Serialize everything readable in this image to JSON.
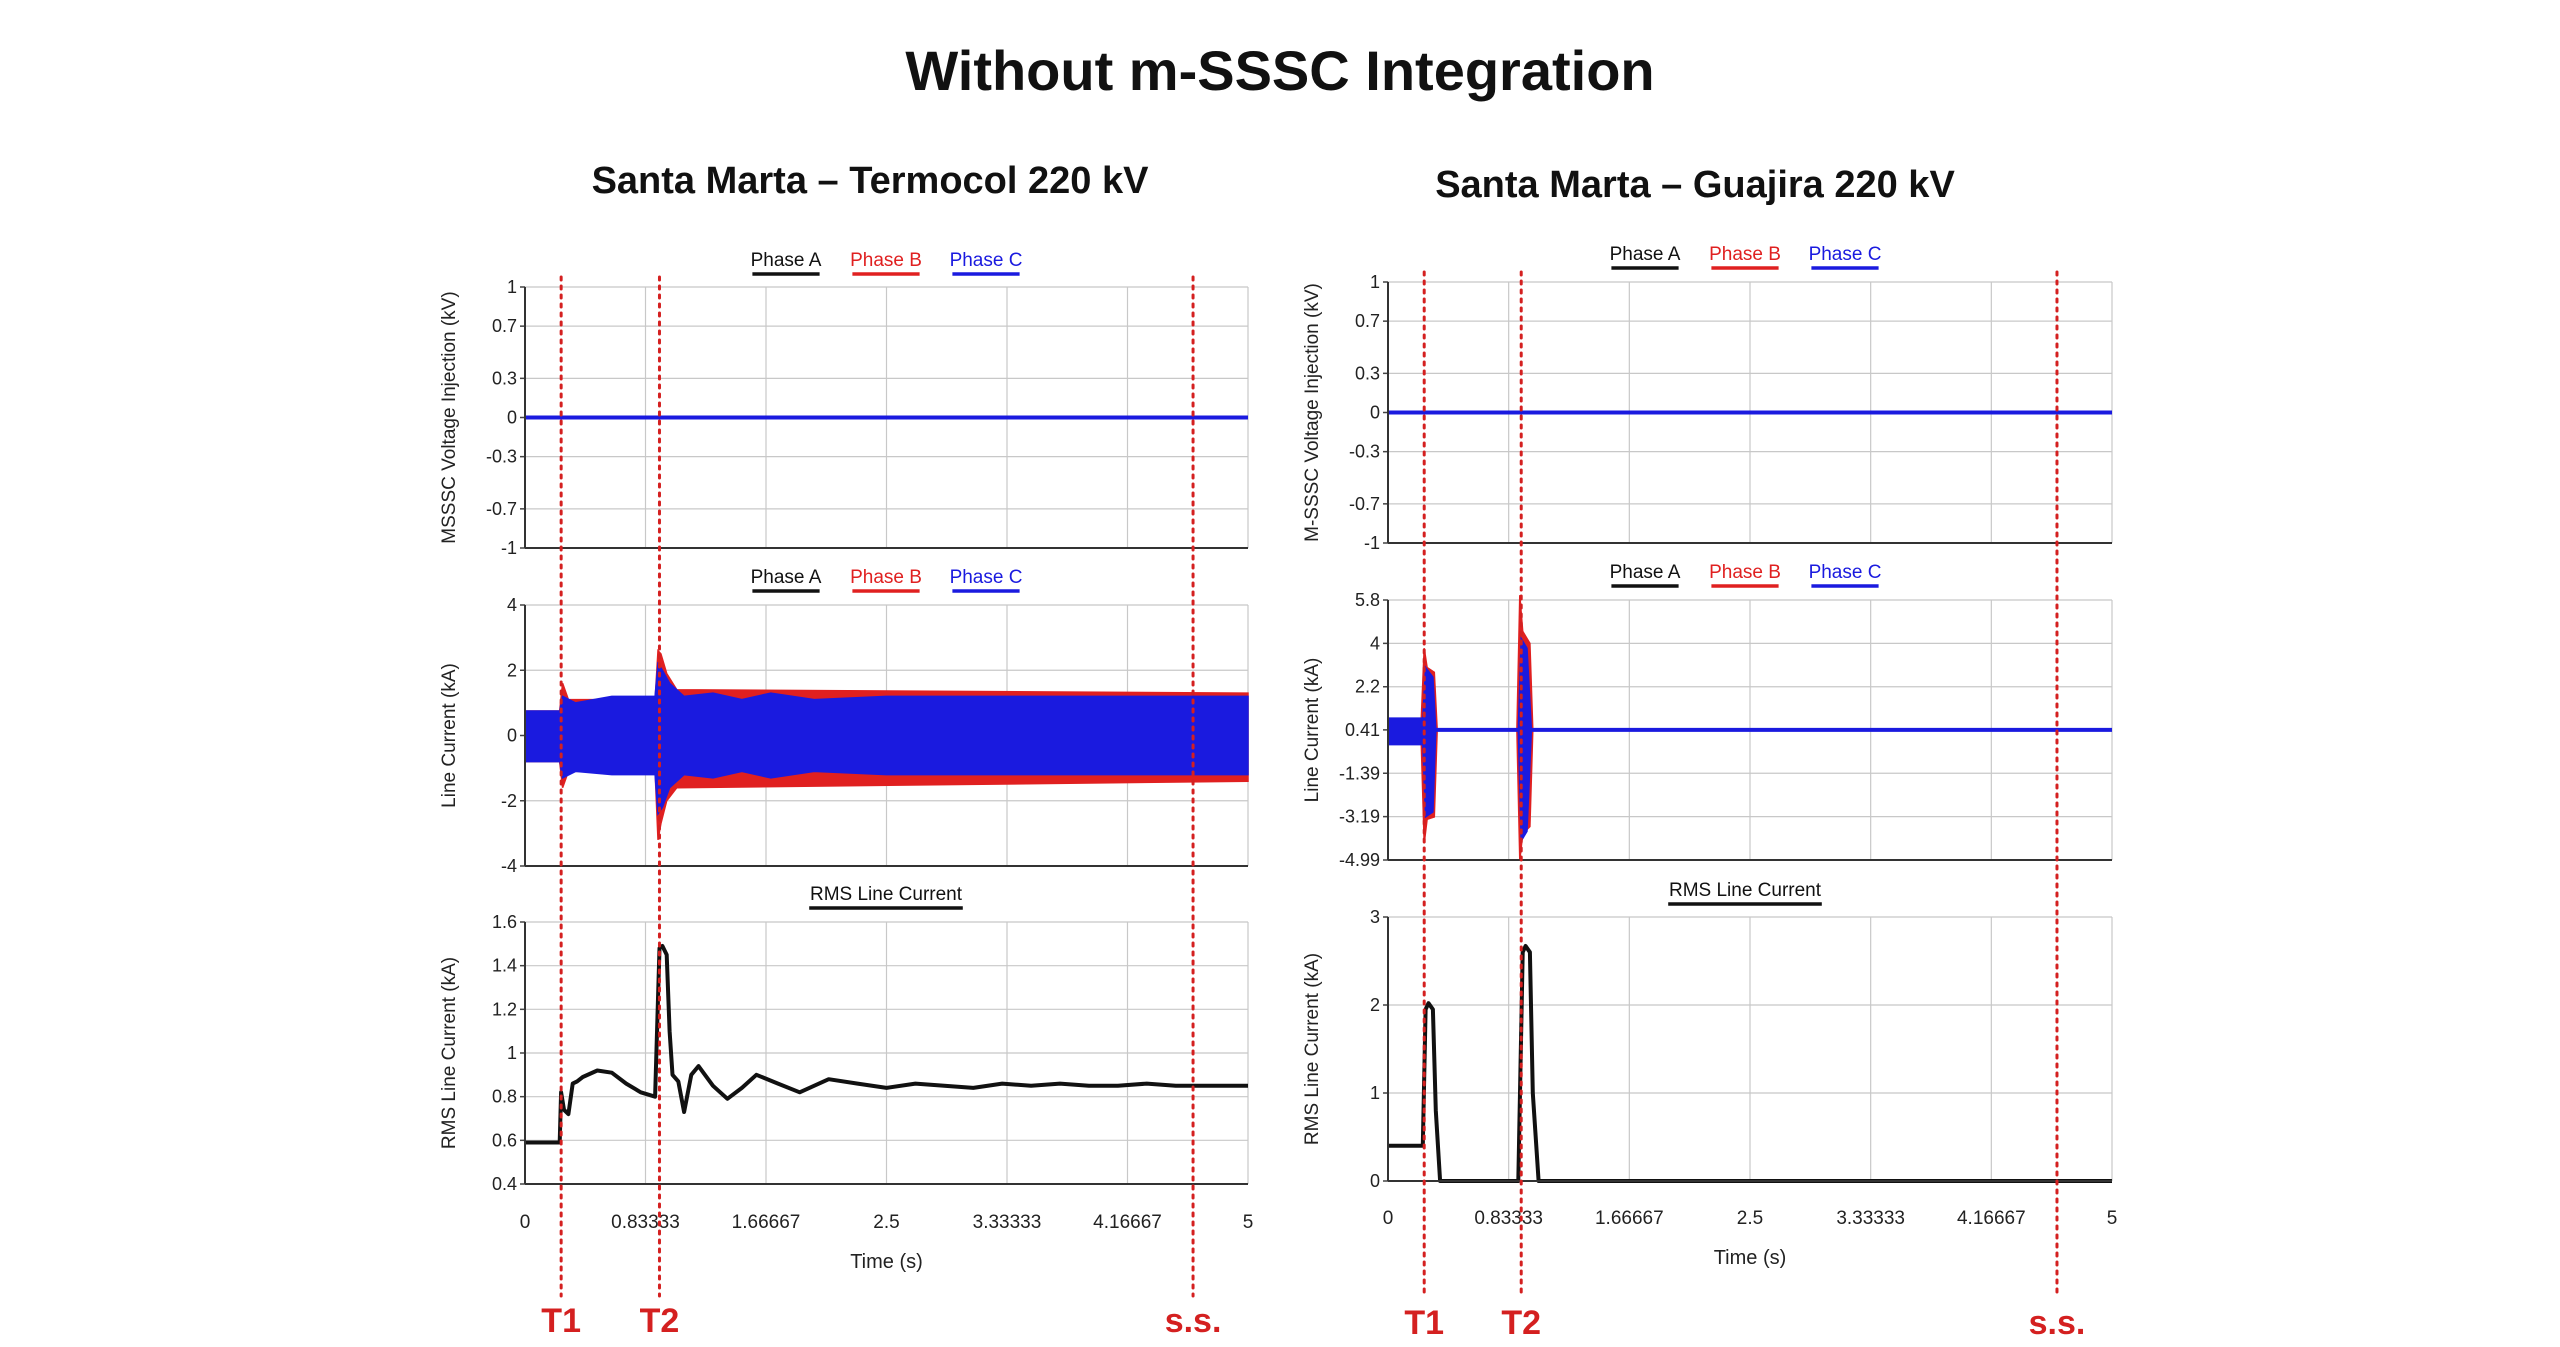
{
  "title": "Without m-SSSC Integration",
  "colors": {
    "phase_a": "#111111",
    "phase_b": "#e02020",
    "phase_c": "#1a1adf",
    "marker": "#d42020",
    "grid": "#c8c8c8"
  },
  "chart_data": [
    {
      "title": "Santa Marta – Termocol 220 kV",
      "xlabel": "Time (s)",
      "xlim": [
        0,
        5
      ],
      "xticks": [
        "0",
        "0.83333",
        "1.66667",
        "2.5",
        "3.33333",
        "4.16667",
        "5"
      ],
      "xtick_values": [
        0,
        0.83333,
        1.66667,
        2.5,
        3.33333,
        4.16667,
        5
      ],
      "events": [
        {
          "label": "T1",
          "x": 0.25
        },
        {
          "label": "T2",
          "x": 0.93
        },
        {
          "label": "s.s.",
          "x": 4.62
        }
      ],
      "panels": [
        {
          "type": "line",
          "ylabel": "MSSSC Voltage Injection (kV)",
          "ylim": [
            -1,
            1
          ],
          "yticks": [
            "-1",
            "-0.7",
            "-0.3",
            "0",
            "0.3",
            "0.7",
            "1"
          ],
          "ytick_values": [
            -1,
            -0.7,
            -0.3,
            0,
            0.3,
            0.7,
            1
          ],
          "legend": [
            "Phase A",
            "Phase B",
            "Phase C"
          ],
          "series": [
            {
              "name": "Phase C",
              "x": [
                0,
                5
              ],
              "y": [
                0,
                0
              ]
            }
          ]
        },
        {
          "type": "area",
          "ylabel": "Line Current (kA)",
          "ylim": [
            -4,
            4
          ],
          "yticks": [
            "-4",
            "-2",
            "0",
            "2",
            "4"
          ],
          "ytick_values": [
            -4,
            -2,
            0,
            2,
            4
          ],
          "legend": [
            "Phase A",
            "Phase B",
            "Phase C"
          ],
          "series": [
            {
              "name": "Phase B",
              "x": [
                0,
                0.24,
                0.26,
                0.3,
                0.9,
                0.92,
                0.94,
                0.98,
                1.05,
                5
              ],
              "upper": [
                0.75,
                0.75,
                1.6,
                1.1,
                1.1,
                2.6,
                2.5,
                1.9,
                1.4,
                1.3
              ],
              "lower": [
                -0.8,
                -0.8,
                -1.6,
                -1.1,
                -1.1,
                -3.2,
                -2.7,
                -2.0,
                -1.6,
                -1.4
              ]
            },
            {
              "name": "Phase C",
              "x": [
                0,
                0.24,
                0.26,
                0.35,
                0.6,
                0.9,
                0.92,
                0.95,
                1.0,
                1.1,
                1.3,
                1.5,
                1.7,
                2.0,
                2.5,
                3.0,
                5
              ],
              "upper": [
                0.75,
                0.75,
                1.2,
                1.0,
                1.2,
                1.2,
                2.2,
                2.0,
                1.6,
                1.2,
                1.3,
                1.1,
                1.3,
                1.1,
                1.2,
                1.2,
                1.2
              ],
              "lower": [
                -0.8,
                -0.8,
                -1.3,
                -1.1,
                -1.2,
                -1.2,
                -2.4,
                -2.2,
                -1.6,
                -1.2,
                -1.3,
                -1.1,
                -1.3,
                -1.1,
                -1.2,
                -1.2,
                -1.2
              ]
            }
          ]
        },
        {
          "type": "line",
          "ylabel": "RMS Line Current (kA)",
          "ylim": [
            0.4,
            1.6
          ],
          "yticks": [
            "0.4",
            "0.6",
            "0.8",
            "1",
            "1.2",
            "1.4",
            "1.6"
          ],
          "ytick_values": [
            0.4,
            0.6,
            0.8,
            1,
            1.2,
            1.4,
            1.6
          ],
          "legend": [
            "RMS Line Current"
          ],
          "series": [
            {
              "name": "RMS Line Current",
              "x": [
                0,
                0.24,
                0.25,
                0.27,
                0.3,
                0.33,
                0.36,
                0.4,
                0.5,
                0.6,
                0.7,
                0.8,
                0.9,
                0.93,
                0.95,
                0.98,
                1.0,
                1.02,
                1.06,
                1.1,
                1.15,
                1.2,
                1.3,
                1.4,
                1.5,
                1.6,
                1.75,
                1.9,
                2.1,
                2.3,
                2.5,
                2.7,
                2.9,
                3.1,
                3.3,
                3.5,
                3.7,
                3.9,
                4.1,
                4.3,
                4.5,
                5
              ],
              "y": [
                0.59,
                0.59,
                0.82,
                0.74,
                0.72,
                0.86,
                0.87,
                0.89,
                0.92,
                0.91,
                0.86,
                0.82,
                0.8,
                1.48,
                1.49,
                1.45,
                1.1,
                0.9,
                0.87,
                0.73,
                0.9,
                0.94,
                0.85,
                0.79,
                0.84,
                0.9,
                0.86,
                0.82,
                0.88,
                0.86,
                0.84,
                0.86,
                0.85,
                0.84,
                0.86,
                0.85,
                0.86,
                0.85,
                0.85,
                0.86,
                0.85,
                0.85
              ]
            }
          ]
        }
      ]
    },
    {
      "title": "Santa Marta – Guajira 220 kV",
      "xlabel": "Time (s)",
      "xlim": [
        0,
        5
      ],
      "xticks": [
        "0",
        "0.83333",
        "1.66667",
        "2.5",
        "3.33333",
        "4.16667",
        "5"
      ],
      "xtick_values": [
        0,
        0.83333,
        1.66667,
        2.5,
        3.33333,
        4.16667,
        5
      ],
      "events": [
        {
          "label": "T1",
          "x": 0.25
        },
        {
          "label": "T2",
          "x": 0.92
        },
        {
          "label": "s.s.",
          "x": 4.62
        }
      ],
      "panels": [
        {
          "type": "line",
          "ylabel": "M-SSSC Voltage Injection (kV)",
          "ylim": [
            -1,
            1
          ],
          "yticks": [
            "-1",
            "-0.7",
            "-0.3",
            "0",
            "0.3",
            "0.7",
            "1"
          ],
          "ytick_values": [
            -1,
            -0.7,
            -0.3,
            0,
            0.3,
            0.7,
            1
          ],
          "legend": [
            "Phase A",
            "Phase B",
            "Phase C"
          ],
          "series": [
            {
              "name": "Phase C",
              "x": [
                0,
                5
              ],
              "y": [
                0,
                0
              ]
            }
          ]
        },
        {
          "type": "area",
          "ylabel": "Line Current (kA)",
          "ylim": [
            -4.99,
            5.8
          ],
          "yticks": [
            "-4.99",
            "-3.19",
            "-1.39",
            "0.41",
            "2.2",
            "4",
            "5.8"
          ],
          "ytick_values": [
            -4.99,
            -3.19,
            -1.39,
            0.41,
            2.2,
            4,
            5.8
          ],
          "legend": [
            "Phase A",
            "Phase B",
            "Phase C"
          ],
          "series": [
            {
              "name": "Phase B",
              "x": [
                0.23,
                0.25,
                0.27,
                0.32,
                0.34,
                0.89,
                0.91,
                0.93,
                0.98,
                1.0
              ],
              "upper": [
                0.9,
                3.8,
                3.0,
                2.8,
                0.41,
                0.41,
                6.0,
                4.5,
                4.0,
                0.41
              ],
              "lower": [
                -0.2,
                -4.3,
                -3.3,
                -3.2,
                0.41,
                0.41,
                -5.0,
                -3.9,
                -3.6,
                0.41
              ]
            },
            {
              "name": "Phase C",
              "x": [
                0,
                0.24,
                0.26,
                0.31,
                0.33,
                0.9,
                0.92,
                0.96,
                0.99
              ],
              "upper": [
                0.9,
                0.9,
                3.0,
                2.6,
                0.41,
                0.41,
                4.2,
                3.8,
                0.41
              ],
              "lower": [
                -0.2,
                -0.2,
                -3.2,
                -3.0,
                0.41,
                0.41,
                -4.2,
                -3.8,
                0.41
              ]
            },
            {
              "name": "Phase C",
              "x": [
                0.33,
                0.9,
                0.99,
                5
              ],
              "upper": [
                0.41,
                0.41,
                0.41,
                0.41
              ],
              "lower": [
                0.41,
                0.41,
                0.41,
                0.41
              ],
              "line": true
            }
          ]
        },
        {
          "type": "line",
          "ylabel": "RMS Line Current (kA)",
          "ylim": [
            0,
            3
          ],
          "yticks": [
            "0",
            "1",
            "2",
            "3"
          ],
          "ytick_values": [
            0,
            1,
            2,
            3
          ],
          "legend": [
            "RMS Line Current"
          ],
          "series": [
            {
              "name": "RMS Line Current",
              "x": [
                0,
                0.24,
                0.26,
                0.28,
                0.31,
                0.33,
                0.36,
                0.9,
                0.93,
                0.95,
                0.98,
                1.0,
                1.04,
                5
              ],
              "y": [
                0.4,
                0.4,
                1.95,
                2.02,
                1.95,
                0.8,
                0.0,
                0.0,
                2.6,
                2.67,
                2.6,
                1.0,
                0.0,
                0.0
              ]
            }
          ]
        }
      ]
    }
  ]
}
